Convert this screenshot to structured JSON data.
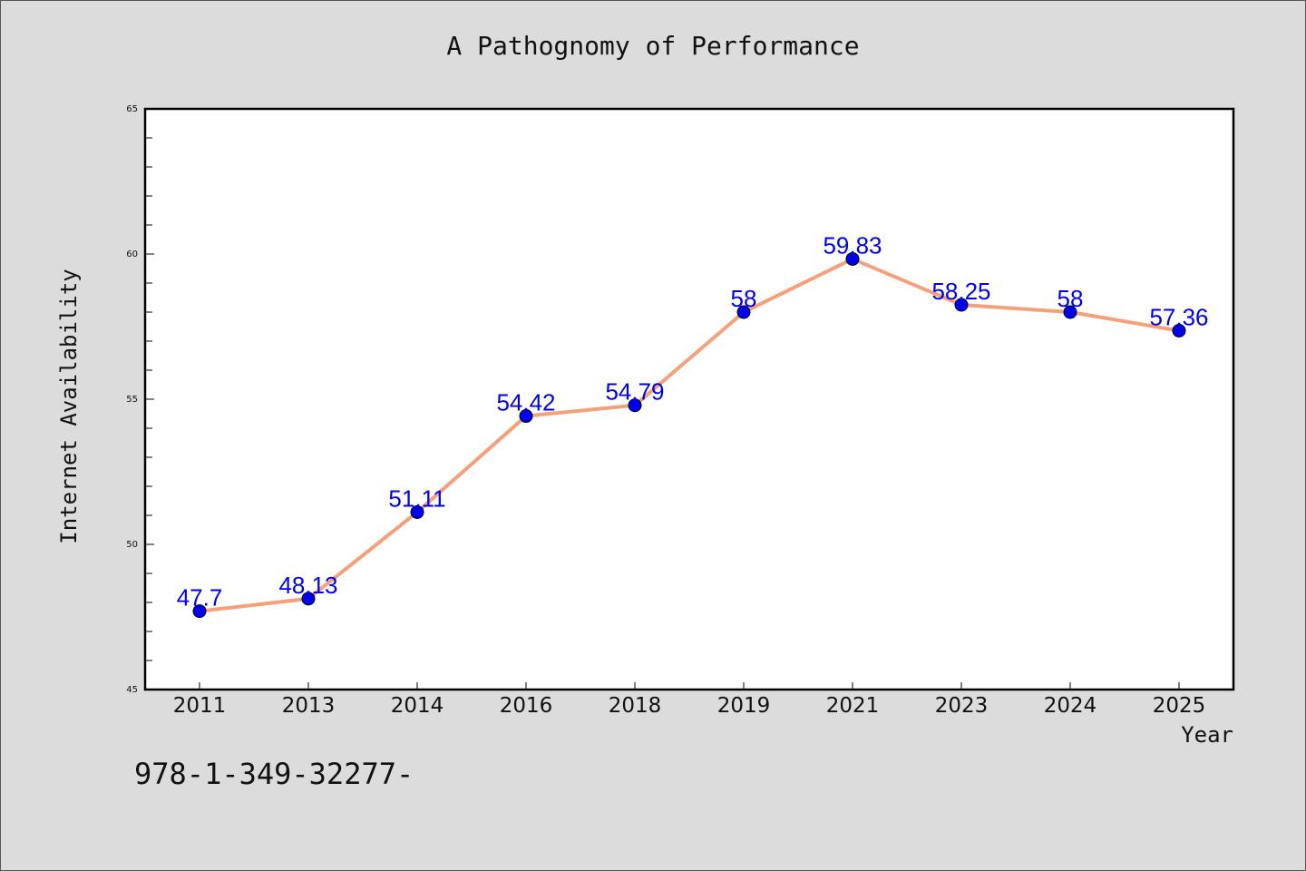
{
  "chart_data": {
    "type": "line",
    "title": "A Pathognomy of Performance",
    "xlabel": "Year",
    "ylabel": "Internet Availability",
    "categories": [
      "2011",
      "2013",
      "2014",
      "2016",
      "2018",
      "2019",
      "2021",
      "2023",
      "2024",
      "2025"
    ],
    "series": [
      {
        "values": [
          47.7,
          48.13,
          51.11,
          54.42,
          54.79,
          58,
          59.83,
          58.25,
          58,
          57.36
        ],
        "data_labels": [
          "47.7",
          "48.13",
          "51.11",
          "54.42",
          "54.79",
          "58",
          "59.83",
          "58.25",
          "58",
          "57.36"
        ]
      }
    ],
    "ylim": [
      45,
      65
    ],
    "yticks": [
      "45",
      "50",
      "55",
      "60",
      "65"
    ],
    "grid": false,
    "colors": {
      "line": "#f4a07a",
      "marker": "#0000ee",
      "label": "#0000ee",
      "background": "#dcdcdc",
      "plot_background": "#ffffff"
    }
  },
  "footer_text": "978-1-349-32277-"
}
